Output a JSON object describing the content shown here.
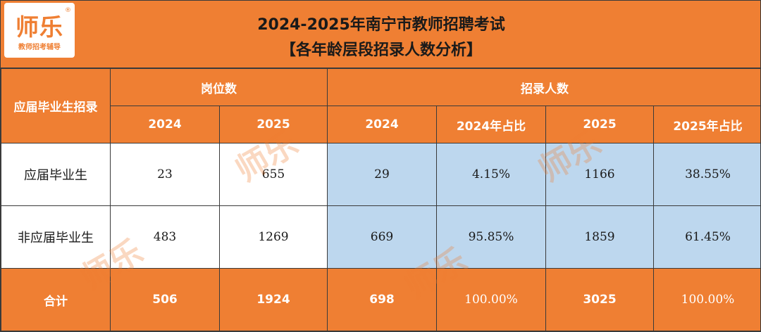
{
  "logo": {
    "main": "师乐",
    "reg": "®",
    "sub": "教师招考辅导"
  },
  "title": {
    "line1": "2024-2025年南宁市教师招聘考试",
    "line2": "【各年龄层段招录人数分析】"
  },
  "table": {
    "corner": "应届毕业生招录",
    "group_posts": "岗位数",
    "group_hires": "招录人数",
    "subheaders": [
      "2024",
      "2025",
      "2024",
      "2024年占比",
      "2025",
      "2025年占比"
    ],
    "rows": [
      {
        "label": "应届毕业生",
        "cells": [
          "23",
          "655",
          "29",
          "4.15%",
          "1166",
          "38.55%"
        ]
      },
      {
        "label": "非应届毕业生",
        "cells": [
          "483",
          "1269",
          "669",
          "95.85%",
          "1859",
          "61.45%"
        ]
      }
    ],
    "total": {
      "label": "合计",
      "cells": [
        "506",
        "1924",
        "698",
        "100.00%",
        "3025",
        "100.00%"
      ]
    }
  },
  "colors": {
    "orange": "#ef7f33",
    "blue": "#bdd7ee"
  }
}
